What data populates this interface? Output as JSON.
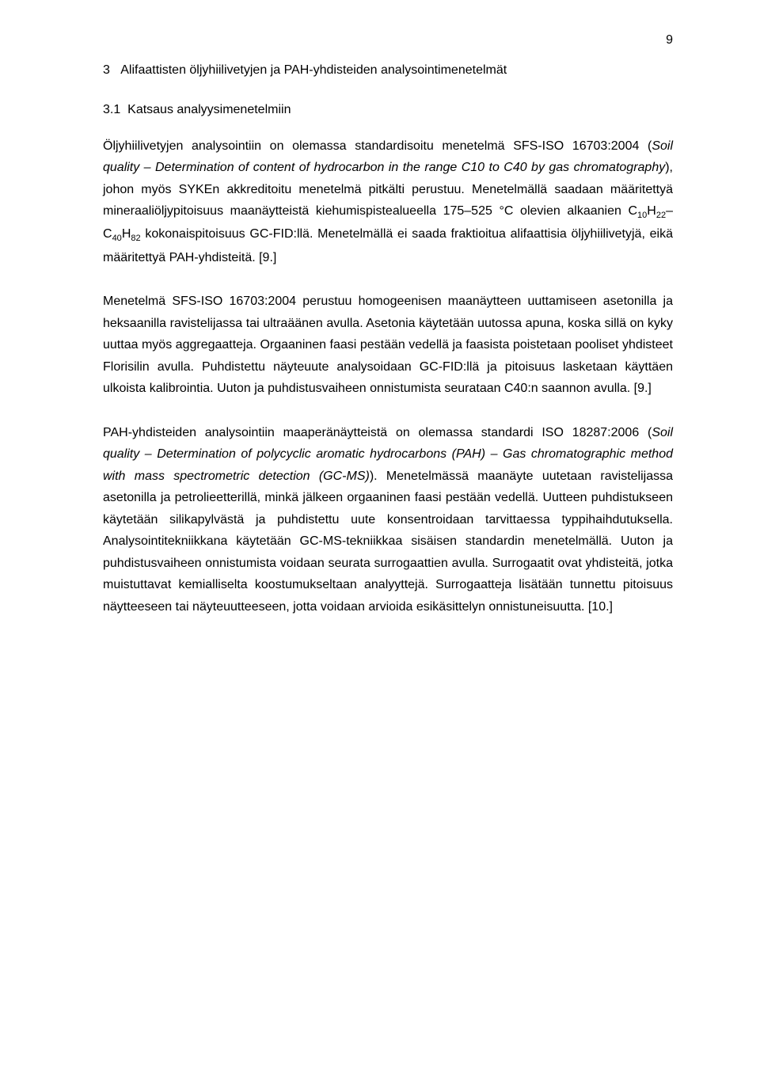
{
  "page_number": "9",
  "heading1": {
    "number": "3",
    "title": "Alifaattisten öljyhiilivetyjen ja PAH-yhdisteiden analysointimenetelmät"
  },
  "heading2": {
    "number": "3.1",
    "title": "Katsaus analyysimenetelmiin"
  },
  "p1": {
    "t1": "Öljyhiilivetyjen analysointiin on olemassa standardisoitu menetelmä SFS-ISO 16703:2004 (",
    "i1": "Soil quality – Determination of content of hydrocarbon in the range C10 to C40 by gas chromatography",
    "t2": "), johon myös SYKEn akkreditoitu menetelmä pitkälti perustuu. Menetelmällä saadaan määritettyä mineraaliöljypitoisuus maanäytteistä kiehumispistealueella 175–525 °C olevien alkaanien C",
    "s1": "10",
    "t3": "H",
    "s2": "22",
    "t4": "–C",
    "s3": "40",
    "t5": "H",
    "s4": "82",
    "t6": " kokonaispitoisuus GC-FID:llä. Menetelmällä ei saada fraktioitua alifaattisia öljyhiilivetyjä, eikä määritettyä PAH-yhdisteitä. [9.]"
  },
  "p2": "Menetelmä SFS-ISO 16703:2004 perustuu homogeenisen maanäytteen uuttamiseen asetonilla ja heksaanilla ravistelijassa tai ultraäänen avulla. Asetonia käytetään uutossa apuna, koska sillä on kyky uuttaa myös aggregaatteja. Orgaaninen faasi pestään vedellä ja faasista poistetaan pooliset yhdisteet Florisilin avulla. Puhdistettu näyteuute analysoidaan GC-FID:llä ja pitoisuus lasketaan käyttäen ulkoista kalibrointia. Uuton ja puhdistusvaiheen onnistumista seurataan C40:n saannon avulla. [9.]",
  "p3": {
    "t1": "PAH-yhdisteiden analysointiin maaperänäytteistä on olemassa standardi ISO 18287:2006 (",
    "i1": "Soil quality – Determination of polycyclic aromatic hydrocarbons (PAH) – Gas chromatographic method with mass spectrometric detection (GC-MS)",
    "t2": "). Menetelmässä maanäyte uutetaan ravistelijassa asetonilla ja petrolieetterillä, minkä jälkeen orgaaninen faasi pestään vedellä. Uutteen puhdistukseen käytetään silikapylvästä ja puhdistettu uute konsentroidaan tarvittaessa typpihaihdutuksella. Analysointitekniikkana käytetään GC-MS-tekniikkaa sisäisen standardin menetelmällä. Uuton ja puhdistusvaiheen onnistumista voidaan seurata surrogaattien avulla. Surrogaatit ovat yhdisteitä, jotka muistuttavat kemialliselta koostumukseltaan analyyttejä. Surrogaatteja lisätään tunnettu pitoisuus näytteeseen tai näyteuutteeseen, jotta voidaan arvioida esikäsittelyn onnistuneisuutta. [10.]"
  }
}
